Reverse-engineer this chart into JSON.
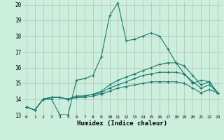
{
  "xlabel": "Humidex (Indice chaleur)",
  "bg_color": "#cceedd",
  "grid_color": "#b0b0b0",
  "line_color": "#1a7a6e",
  "xlim": [
    -0.5,
    23.5
  ],
  "ylim": [
    13,
    20.2
  ],
  "yticks": [
    13,
    14,
    15,
    16,
    17,
    18,
    19,
    20
  ],
  "xticks": [
    0,
    1,
    2,
    3,
    4,
    5,
    6,
    7,
    8,
    9,
    10,
    11,
    12,
    13,
    14,
    15,
    16,
    17,
    18,
    19,
    20,
    21,
    22,
    23
  ],
  "series": [
    [
      13.5,
      13.3,
      14.0,
      14.0,
      13.0,
      13.0,
      15.2,
      15.3,
      15.5,
      16.7,
      19.3,
      20.1,
      17.7,
      17.8,
      18.0,
      18.2,
      18.0,
      17.2,
      16.3,
      15.6,
      15.0,
      15.2,
      15.1,
      14.4
    ],
    [
      13.5,
      13.3,
      14.0,
      14.1,
      14.1,
      14.0,
      14.2,
      14.2,
      14.3,
      14.5,
      14.9,
      15.2,
      15.4,
      15.6,
      15.8,
      16.0,
      16.2,
      16.3,
      16.3,
      16.1,
      15.5,
      14.9,
      15.1,
      14.4
    ],
    [
      13.5,
      13.3,
      14.0,
      14.1,
      14.1,
      14.0,
      14.1,
      14.2,
      14.3,
      14.4,
      14.7,
      14.9,
      15.1,
      15.3,
      15.5,
      15.6,
      15.7,
      15.7,
      15.7,
      15.6,
      15.1,
      14.7,
      14.9,
      14.4
    ],
    [
      13.5,
      13.3,
      14.0,
      14.1,
      14.1,
      14.0,
      14.1,
      14.1,
      14.2,
      14.3,
      14.5,
      14.7,
      14.8,
      14.9,
      15.0,
      15.1,
      15.1,
      15.1,
      15.1,
      15.0,
      14.7,
      14.4,
      14.6,
      14.4
    ]
  ]
}
